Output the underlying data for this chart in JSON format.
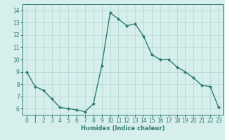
{
  "x": [
    0,
    1,
    2,
    3,
    4,
    5,
    6,
    7,
    8,
    9,
    10,
    11,
    12,
    13,
    14,
    15,
    16,
    17,
    18,
    19,
    20,
    21,
    22,
    23
  ],
  "y": [
    9.0,
    7.8,
    7.5,
    6.8,
    6.1,
    6.0,
    5.9,
    5.75,
    6.4,
    9.5,
    13.8,
    13.3,
    12.75,
    12.9,
    11.9,
    10.4,
    10.0,
    10.0,
    9.4,
    9.0,
    8.5,
    7.9,
    7.8,
    6.1
  ],
  "line_color": "#2d7d6f",
  "marker": "D",
  "marker_size": 2.0,
  "bg_color": "#d6eeec",
  "grid_color": "#b8d8d4",
  "xlabel": "Humidex (Indice chaleur)",
  "xlim": [
    -0.5,
    23.5
  ],
  "ylim": [
    5.5,
    14.5
  ],
  "yticks": [
    6,
    7,
    8,
    9,
    10,
    11,
    12,
    13,
    14
  ],
  "xticks": [
    0,
    1,
    2,
    3,
    4,
    5,
    6,
    7,
    8,
    9,
    10,
    11,
    12,
    13,
    14,
    15,
    16,
    17,
    18,
    19,
    20,
    21,
    22,
    23
  ],
  "axis_color": "#2d7d6f",
  "label_fontsize": 6.0,
  "tick_fontsize": 5.5
}
